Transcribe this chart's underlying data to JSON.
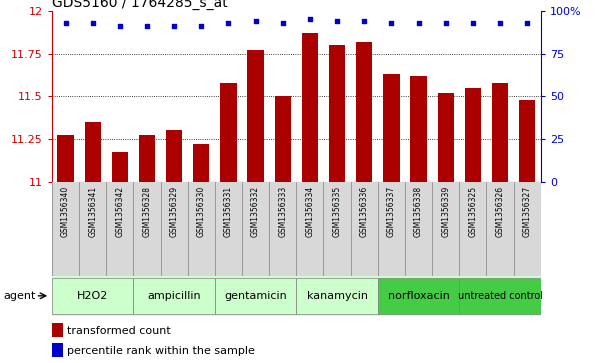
{
  "title": "GDS5160 / 1764285_s_at",
  "samples": [
    "GSM1356340",
    "GSM1356341",
    "GSM1356342",
    "GSM1356328",
    "GSM1356329",
    "GSM1356330",
    "GSM1356331",
    "GSM1356332",
    "GSM1356333",
    "GSM1356334",
    "GSM1356335",
    "GSM1356336",
    "GSM1356337",
    "GSM1356338",
    "GSM1356339",
    "GSM1356325",
    "GSM1356326",
    "GSM1356327"
  ],
  "bar_values": [
    11.27,
    11.35,
    11.17,
    11.27,
    11.3,
    11.22,
    11.58,
    11.77,
    11.5,
    11.87,
    11.8,
    11.82,
    11.63,
    11.62,
    11.52,
    11.55,
    11.58,
    11.48
  ],
  "percentile_values": [
    93,
    93,
    91,
    91,
    91,
    91,
    93,
    94,
    93,
    95,
    94,
    94,
    93,
    93,
    93,
    93,
    93,
    93
  ],
  "bar_color": "#aa0000",
  "dot_color": "#0000cc",
  "ylim_left": [
    11.0,
    12.0
  ],
  "ylim_right": [
    0,
    100
  ],
  "yticks_left": [
    11.0,
    11.25,
    11.5,
    11.75,
    12.0
  ],
  "yticks_right": [
    0,
    25,
    50,
    75,
    100
  ],
  "ytick_labels_left": [
    "11",
    "11.25",
    "11.5",
    "11.75",
    "12"
  ],
  "ytick_labels_right": [
    "0",
    "25",
    "50",
    "75",
    "100%"
  ],
  "groups": [
    {
      "label": "H2O2",
      "indices": [
        0,
        1,
        2
      ],
      "color": "#ccffcc"
    },
    {
      "label": "ampicillin",
      "indices": [
        3,
        4,
        5
      ],
      "color": "#ccffcc"
    },
    {
      "label": "gentamicin",
      "indices": [
        6,
        7,
        8
      ],
      "color": "#ccffcc"
    },
    {
      "label": "kanamycin",
      "indices": [
        9,
        10,
        11
      ],
      "color": "#ccffcc"
    },
    {
      "label": "norfloxacin",
      "indices": [
        12,
        13,
        14
      ],
      "color": "#44cc44"
    },
    {
      "label": "untreated control",
      "indices": [
        15,
        16,
        17
      ],
      "color": "#44cc44"
    }
  ],
  "bar_width": 0.6,
  "legend_bar_label": "transformed count",
  "legend_dot_label": "percentile rank within the sample",
  "agent_label": "agent",
  "background_color": "#ffffff",
  "plot_bg_color": "#ffffff",
  "grid_color": "#000000",
  "tick_label_color_left": "#cc0000",
  "tick_label_color_right": "#0000cc",
  "title_color": "#000000",
  "title_fontsize": 10,
  "label_fontsize": 5.5,
  "group_fontsize": 8,
  "legend_fontsize": 8
}
